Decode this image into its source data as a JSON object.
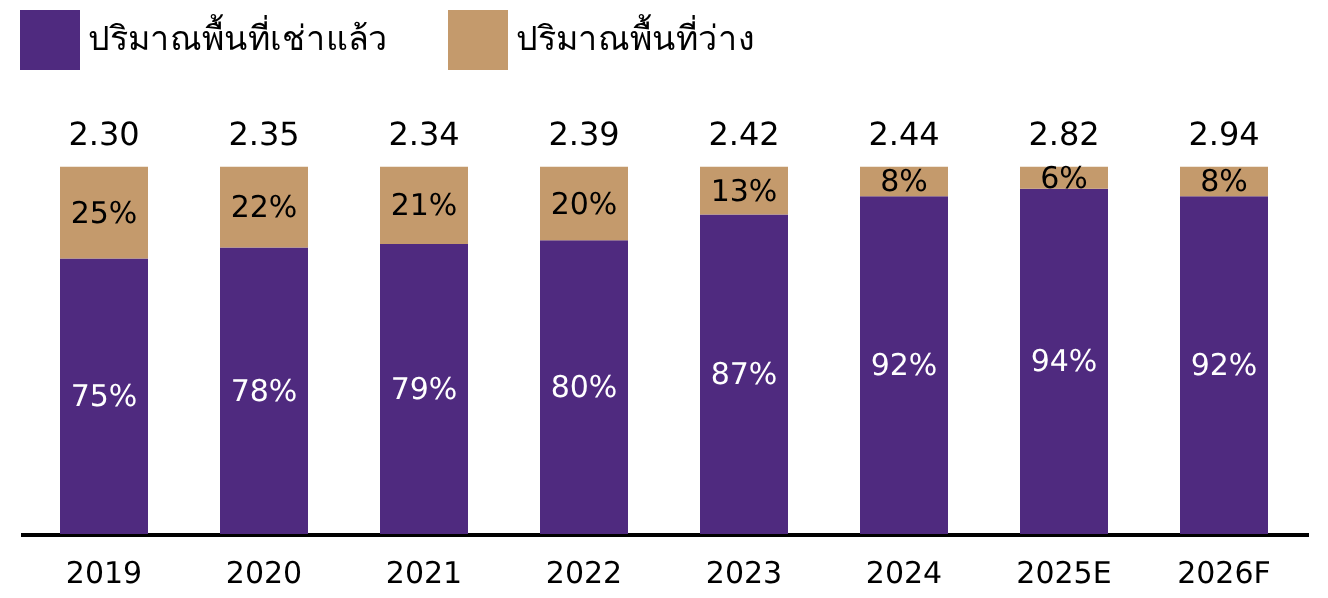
{
  "chart_data": {
    "type": "bar",
    "stacked": true,
    "categories": [
      "2019",
      "2020",
      "2021",
      "2022",
      "2023",
      "2024",
      "2025E",
      "2026F"
    ],
    "series": [
      {
        "name": "ปริมาณพื้นที่เช่าแล้ว",
        "color": "#4f2a7f",
        "values": [
          75,
          78,
          79,
          80,
          87,
          92,
          94,
          92
        ],
        "value_labels": [
          "75%",
          "78%",
          "79%",
          "80%",
          "87%",
          "92%",
          "94%",
          "92%"
        ]
      },
      {
        "name": "ปริมาณพื้นที่ว่าง",
        "color": "#c49a6c",
        "values": [
          25,
          22,
          21,
          20,
          13,
          8,
          6,
          8
        ],
        "value_labels": [
          "25%",
          "22%",
          "21%",
          "20%",
          "13%",
          "8%",
          "6%",
          "8%"
        ]
      }
    ],
    "annotations": [
      {
        "text": "2.30",
        "x": "2019",
        "y": 100
      },
      {
        "text": "2.35",
        "x": "2020",
        "y": 100
      },
      {
        "text": "2.34",
        "x": "2021",
        "y": 100
      },
      {
        "text": "2.39",
        "x": "2022",
        "y": 100
      },
      {
        "text": "2.42",
        "x": "2023",
        "y": 100
      },
      {
        "text": "2.44",
        "x": "2024",
        "y": 100
      },
      {
        "text": "2.82",
        "x": "2025E",
        "y": 100
      },
      {
        "text": "2.94",
        "x": "2026F",
        "y": 100
      }
    ],
    "legend": "top",
    "grid": false
  }
}
